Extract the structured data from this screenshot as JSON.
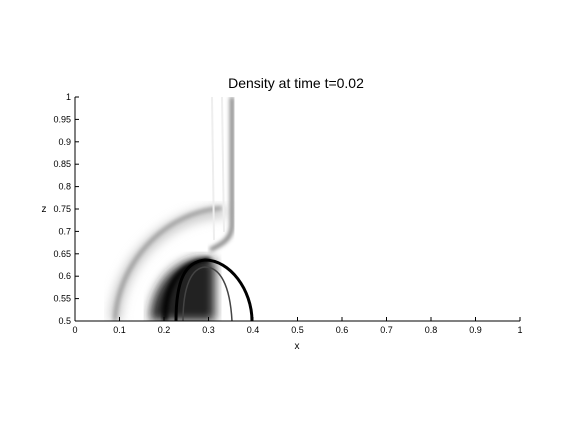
{
  "chart_data": {
    "type": "image",
    "title": "Density at time t=0.02",
    "xlabel": "x",
    "ylabel": "z",
    "xlim": [
      0,
      1
    ],
    "xticks": [
      0,
      0.1,
      0.2,
      0.3,
      0.4,
      0.5,
      0.6,
      0.7,
      0.8,
      0.9,
      1
    ],
    "ylim": [
      0.5,
      1
    ],
    "yticks": [
      0.5,
      0.55,
      0.6,
      0.65,
      0.7,
      0.75,
      0.8,
      0.85,
      0.9,
      0.95,
      1
    ]
  }
}
